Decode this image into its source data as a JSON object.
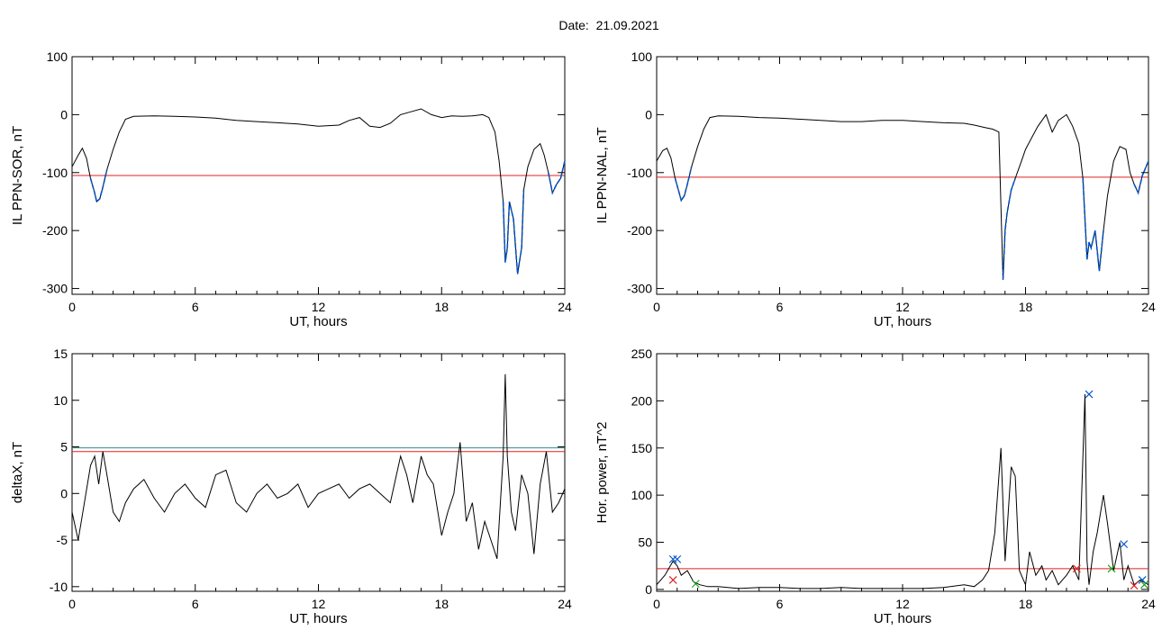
{
  "header": {
    "date_label": "Date:  21.09.2021"
  },
  "colors": {
    "trace": "#000000",
    "highlight": "#0055cc",
    "threshold_red": "#e02020",
    "threshold_teal": "#3a8a8a",
    "marker_green": "#20a020"
  },
  "chart_data": [
    {
      "id": "sor",
      "type": "line",
      "title": "",
      "xlabel": "UT, hours",
      "ylabel": "IL PPN-SOR, nT",
      "xlim": [
        0,
        24
      ],
      "ylim": [
        -310,
        100
      ],
      "xticks": [
        0,
        6,
        12,
        18,
        24
      ],
      "yticks": [
        100,
        0,
        -100,
        -200,
        -300
      ],
      "grid": false,
      "thresholds": [
        {
          "y": -105,
          "color": "#e02020"
        }
      ],
      "x": [
        0,
        0.3,
        0.5,
        0.7,
        0.9,
        1.1,
        1.2,
        1.35,
        1.5,
        1.7,
        2.0,
        2.3,
        2.6,
        3.0,
        4.0,
        5.0,
        6.0,
        7.0,
        8.0,
        9.0,
        10.0,
        11.0,
        12.0,
        13.0,
        13.5,
        14.0,
        14.5,
        15.0,
        15.5,
        16.0,
        16.5,
        17.0,
        17.5,
        18.0,
        18.5,
        19.0,
        19.5,
        20.0,
        20.3,
        20.6,
        20.8,
        21.0,
        21.1,
        21.2,
        21.3,
        21.5,
        21.7,
        21.9,
        22.0,
        22.2,
        22.5,
        22.8,
        23.0,
        23.2,
        23.4,
        23.6,
        23.8,
        24.0
      ],
      "values": [
        -90,
        -70,
        -58,
        -75,
        -110,
        -135,
        -150,
        -145,
        -125,
        -95,
        -60,
        -30,
        -8,
        -3,
        -2,
        -3,
        -4,
        -6,
        -10,
        -12,
        -14,
        -16,
        -20,
        -18,
        -10,
        -5,
        -20,
        -22,
        -15,
        0,
        5,
        10,
        0,
        -5,
        -2,
        -3,
        -2,
        0,
        -5,
        -30,
        -80,
        -150,
        -255,
        -230,
        -150,
        -180,
        -275,
        -230,
        -130,
        -90,
        -60,
        -50,
        -70,
        -100,
        -135,
        -120,
        -110,
        -80
      ],
      "highlight_ranges": [
        [
          0.9,
          1.7
        ],
        [
          20.9,
          22.1
        ],
        [
          23.2,
          24
        ]
      ]
    },
    {
      "id": "nal",
      "type": "line",
      "title": "",
      "xlabel": "UT, hours",
      "ylabel": "IL PPN-NAL, nT",
      "xlim": [
        0,
        24
      ],
      "ylim": [
        -310,
        100
      ],
      "xticks": [
        0,
        6,
        12,
        18,
        24
      ],
      "yticks": [
        100,
        0,
        -100,
        -200,
        -300
      ],
      "grid": false,
      "thresholds": [
        {
          "y": -108,
          "color": "#e02020"
        }
      ],
      "x": [
        0,
        0.3,
        0.5,
        0.7,
        0.9,
        1.1,
        1.2,
        1.35,
        1.5,
        1.7,
        2.0,
        2.3,
        2.6,
        3.0,
        4.0,
        5.0,
        6.0,
        7.0,
        8.0,
        9.0,
        10.0,
        11.0,
        12.0,
        13.0,
        14.0,
        15.0,
        15.5,
        16.0,
        16.4,
        16.7,
        16.9,
        17.0,
        17.1,
        17.3,
        17.5,
        17.8,
        18.0,
        18.3,
        18.6,
        19.0,
        19.3,
        19.6,
        20.0,
        20.3,
        20.6,
        20.8,
        21.0,
        21.1,
        21.2,
        21.4,
        21.6,
        21.8,
        22.0,
        22.3,
        22.6,
        22.9,
        23.1,
        23.3,
        23.5,
        23.7,
        24.0
      ],
      "values": [
        -80,
        -62,
        -58,
        -75,
        -110,
        -135,
        -148,
        -140,
        -120,
        -90,
        -55,
        -25,
        -5,
        -2,
        -3,
        -5,
        -6,
        -8,
        -10,
        -12,
        -12,
        -10,
        -10,
        -12,
        -14,
        -15,
        -18,
        -22,
        -25,
        -30,
        -285,
        -200,
        -170,
        -130,
        -110,
        -80,
        -60,
        -40,
        -20,
        0,
        -30,
        -10,
        0,
        -20,
        -50,
        -110,
        -250,
        -220,
        -230,
        -200,
        -270,
        -200,
        -140,
        -80,
        -55,
        -60,
        -100,
        -120,
        -135,
        -105,
        -80
      ],
      "highlight_ranges": [
        [
          0.9,
          1.7
        ],
        [
          16.9,
          17.6
        ],
        [
          20.8,
          21.9
        ],
        [
          23.3,
          24
        ]
      ]
    },
    {
      "id": "deltax",
      "type": "line",
      "title": "",
      "xlabel": "UT, hours",
      "ylabel": "deltaX, nT",
      "xlim": [
        0,
        24
      ],
      "ylim": [
        -10.5,
        15
      ],
      "xticks": [
        0,
        6,
        12,
        18,
        24
      ],
      "yticks": [
        15,
        10,
        5,
        0,
        -5,
        -10
      ],
      "grid": false,
      "thresholds": [
        {
          "y": 4.9,
          "color": "#3a8a8a"
        },
        {
          "y": 4.5,
          "color": "#e02020"
        }
      ],
      "x": [
        0,
        0.3,
        0.6,
        0.9,
        1.1,
        1.3,
        1.5,
        1.7,
        2.0,
        2.3,
        2.6,
        3.0,
        3.5,
        4.0,
        4.5,
        5.0,
        5.5,
        6.0,
        6.5,
        7.0,
        7.5,
        8.0,
        8.5,
        9.0,
        9.5,
        10.0,
        10.5,
        11.0,
        11.5,
        12.0,
        12.5,
        13.0,
        13.5,
        14.0,
        14.5,
        15.0,
        15.5,
        16.0,
        16.3,
        16.6,
        17.0,
        17.3,
        17.6,
        18.0,
        18.3,
        18.6,
        18.9,
        19.2,
        19.5,
        19.8,
        20.1,
        20.4,
        20.7,
        21.0,
        21.1,
        21.2,
        21.4,
        21.6,
        21.9,
        22.2,
        22.5,
        22.8,
        23.1,
        23.4,
        23.7,
        24.0
      ],
      "values": [
        -2,
        -5,
        -1,
        3,
        4,
        1,
        4.5,
        2,
        -2,
        -3,
        -1,
        0.5,
        1.5,
        -0.5,
        -2,
        0,
        1,
        -0.5,
        -1.5,
        2,
        2.5,
        -1,
        -2,
        0,
        1,
        -0.5,
        0,
        1,
        -1.5,
        0,
        0.5,
        1,
        -0.5,
        0.5,
        1,
        0,
        -1,
        4,
        2,
        -1,
        4,
        2,
        1,
        -4.5,
        -2,
        0,
        5.5,
        -3,
        -1,
        -6,
        -3,
        -5,
        -7,
        4,
        12.8,
        4,
        -2,
        -4,
        2,
        0,
        -6.5,
        1,
        4.5,
        -2,
        -1,
        0.5
      ],
      "highlight_ranges": []
    },
    {
      "id": "hpower",
      "type": "line",
      "title": "",
      "xlabel": "UT, hours",
      "ylabel": "Hor. power, nT^2",
      "xlim": [
        0,
        24
      ],
      "ylim": [
        -2,
        250
      ],
      "xticks": [
        0,
        6,
        12,
        18,
        24
      ],
      "yticks": [
        250,
        200,
        150,
        100,
        50,
        0
      ],
      "grid": false,
      "thresholds": [
        {
          "y": 22,
          "color": "#e02020"
        }
      ],
      "x": [
        0,
        0.4,
        0.8,
        1.0,
        1.2,
        1.5,
        1.8,
        2.1,
        2.5,
        3.0,
        4.0,
        5.0,
        6.0,
        7.0,
        8.0,
        9.0,
        10.0,
        11.0,
        12.0,
        13.0,
        14.0,
        15.0,
        15.5,
        15.9,
        16.2,
        16.5,
        16.8,
        17.0,
        17.3,
        17.5,
        17.7,
        18.0,
        18.2,
        18.5,
        18.8,
        19.0,
        19.3,
        19.6,
        20.0,
        20.3,
        20.6,
        20.9,
        21.0,
        21.1,
        21.3,
        21.5,
        21.8,
        22.0,
        22.3,
        22.6,
        22.8,
        23.0,
        23.3,
        23.6,
        24.0
      ],
      "values": [
        5,
        15,
        30,
        25,
        15,
        20,
        8,
        5,
        3,
        3,
        1,
        2,
        2,
        1,
        1,
        2,
        1,
        1,
        1,
        1,
        2,
        5,
        3,
        10,
        20,
        60,
        150,
        30,
        130,
        120,
        20,
        5,
        40,
        15,
        25,
        10,
        20,
        5,
        15,
        25,
        10,
        207,
        30,
        5,
        40,
        60,
        100,
        70,
        20,
        50,
        10,
        25,
        5,
        10,
        5
      ],
      "markers": [
        {
          "x": 0.8,
          "y": 10,
          "symbol": "x",
          "color": "#e02020"
        },
        {
          "x": 0.8,
          "y": 32,
          "symbol": "x",
          "color": "#0055cc"
        },
        {
          "x": 1.0,
          "y": 32,
          "symbol": "x",
          "color": "#0055cc"
        },
        {
          "x": 1.9,
          "y": 6,
          "symbol": "x",
          "color": "#20a020"
        },
        {
          "x": 20.5,
          "y": 22,
          "symbol": "x",
          "color": "#e02020"
        },
        {
          "x": 21.1,
          "y": 207,
          "symbol": "x",
          "color": "#0055cc"
        },
        {
          "x": 22.2,
          "y": 22,
          "symbol": "x",
          "color": "#20a020"
        },
        {
          "x": 22.8,
          "y": 48,
          "symbol": "x",
          "color": "#0055cc"
        },
        {
          "x": 23.3,
          "y": 4,
          "symbol": "x",
          "color": "#e02020"
        },
        {
          "x": 23.7,
          "y": 10,
          "symbol": "x",
          "color": "#0055cc"
        },
        {
          "x": 23.8,
          "y": 5,
          "symbol": "x",
          "color": "#20a020"
        }
      ],
      "highlight_ranges": []
    }
  ]
}
